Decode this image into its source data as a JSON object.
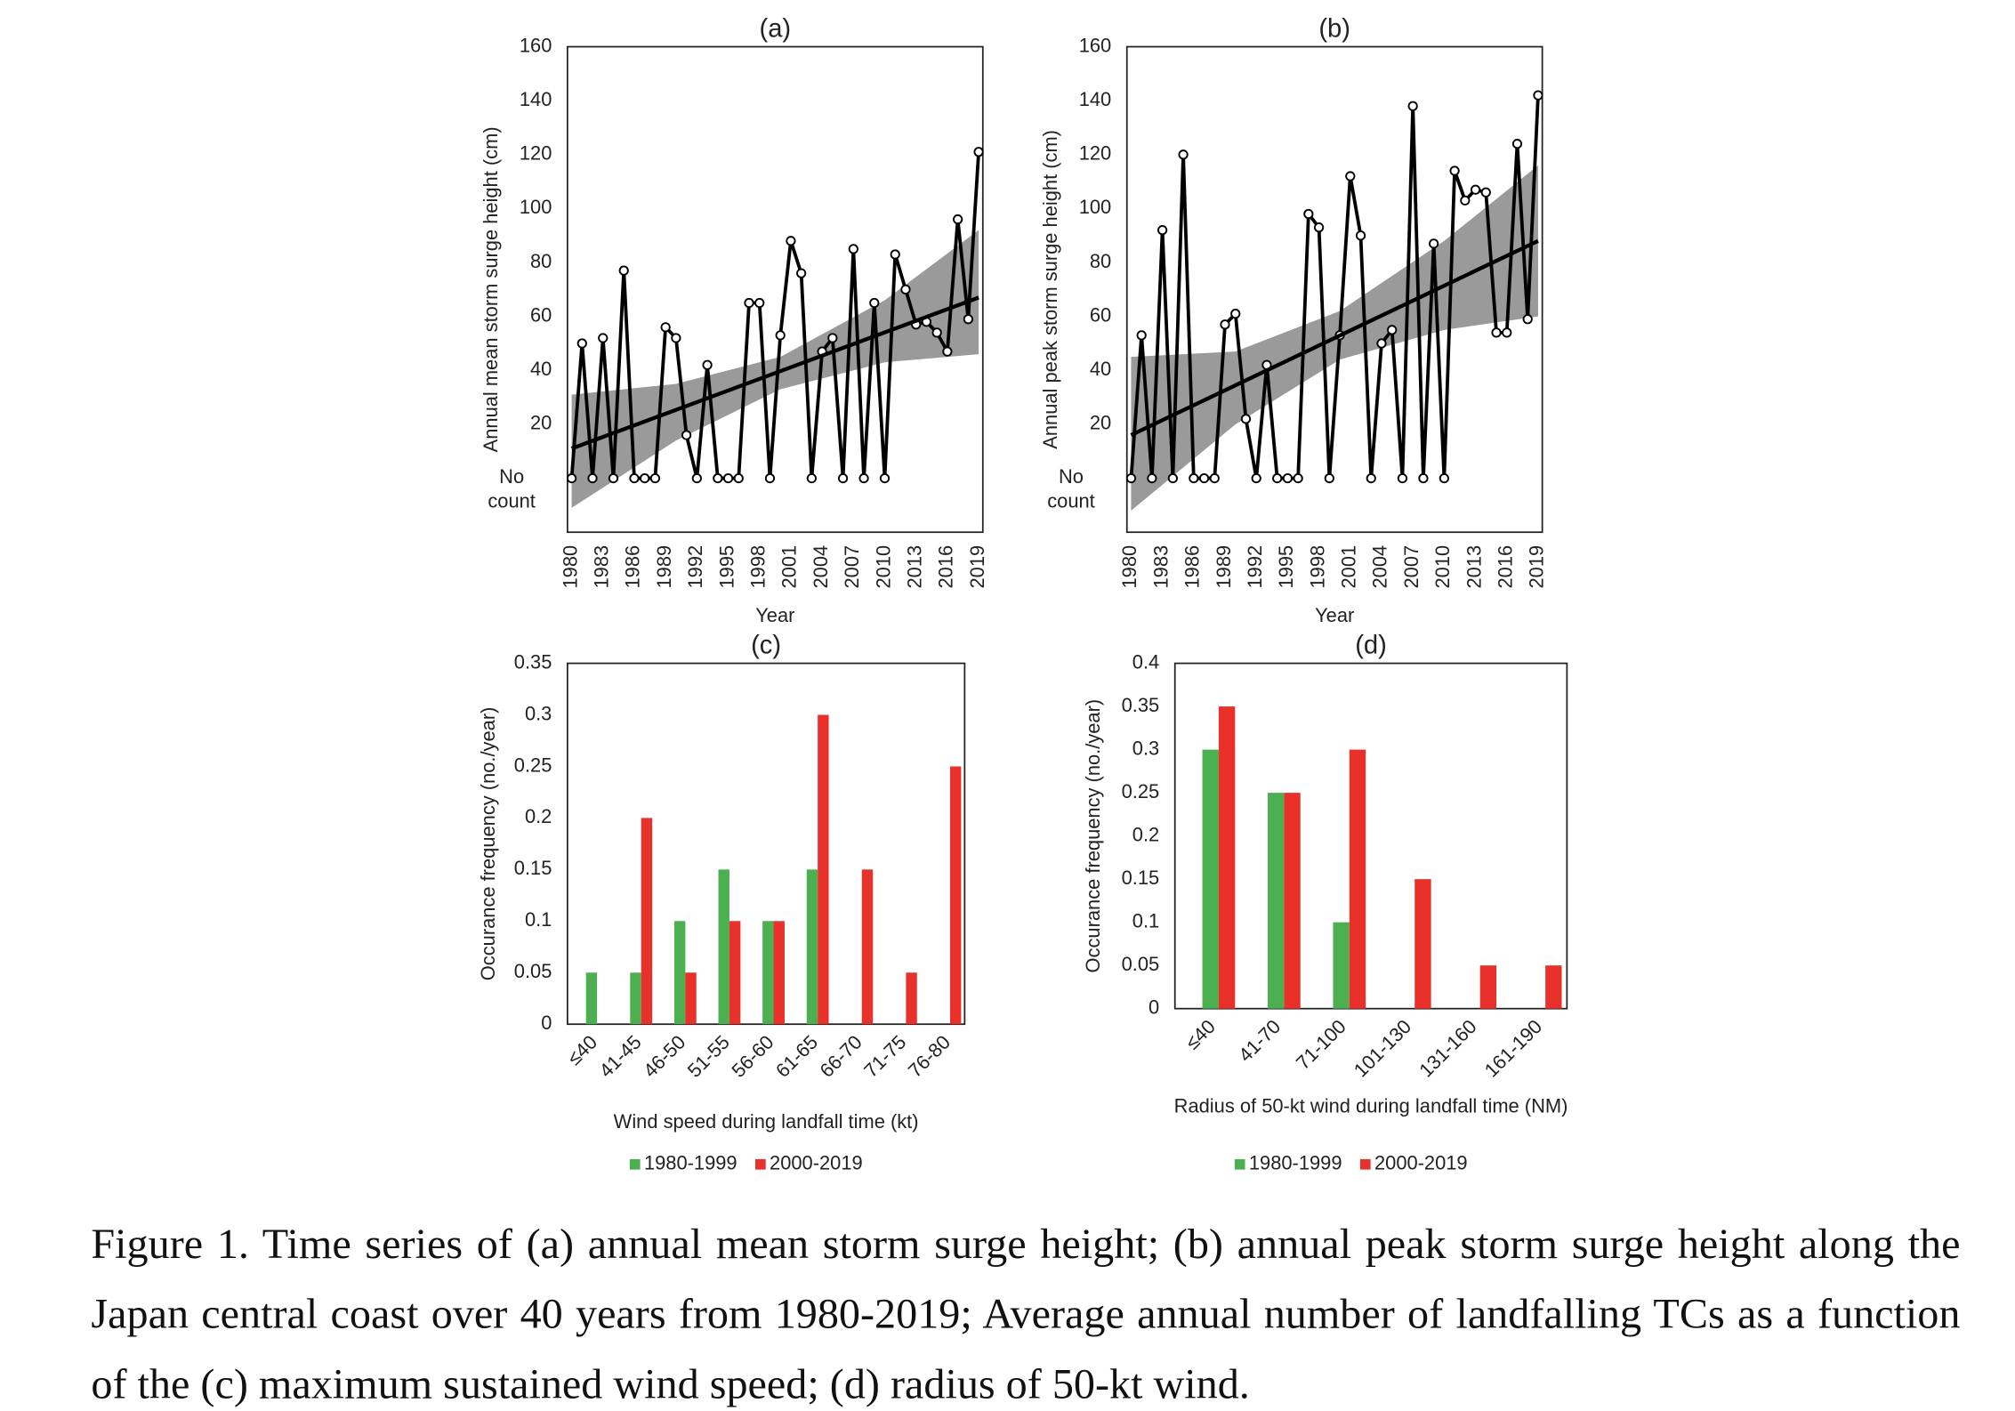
{
  "chart_data": [
    {
      "type": "line",
      "title": "(a)",
      "xlabel": "Year",
      "ylabel": "Annual mean storm surge height (cm)",
      "x": [
        1980,
        1981,
        1982,
        1983,
        1984,
        1985,
        1986,
        1987,
        1988,
        1989,
        1990,
        1991,
        1992,
        1993,
        1994,
        1995,
        1996,
        1997,
        1998,
        1999,
        2000,
        2001,
        2002,
        2003,
        2004,
        2005,
        2006,
        2007,
        2008,
        2009,
        2010,
        2011,
        2012,
        2013,
        2014,
        2015,
        2016,
        2017,
        2018,
        2019
      ],
      "series": [
        {
          "color": "#000000",
          "values": [
            0,
            50,
            0,
            52,
            0,
            77,
            0,
            0,
            0,
            56,
            52,
            16,
            0,
            42,
            0,
            0,
            0,
            65,
            65,
            0,
            53,
            88,
            76,
            0,
            47,
            52,
            0,
            85,
            0,
            65,
            0,
            83,
            70,
            57,
            58,
            54,
            47,
            96,
            59,
            121
          ]
        }
      ],
      "trend": {
        "x": [
          1980,
          2019
        ],
        "values": [
          11,
          67
        ]
      },
      "band": {
        "color": "#9a9a9a",
        "x": [
          1980,
          1990,
          2000,
          2010,
          2019
        ],
        "lower": [
          -11,
          14,
          33,
          43,
          46
        ],
        "upper": [
          31,
          35,
          45,
          66,
          92
        ]
      },
      "xlim": [
        1979.6,
        2019.4
      ],
      "xticks": [
        1980,
        1983,
        1986,
        1989,
        1992,
        1995,
        1998,
        2001,
        2004,
        2007,
        2010,
        2013,
        2016,
        2019
      ],
      "ylim": [
        -20,
        160
      ],
      "yticks": [
        {
          "value": 0,
          "label": "No count"
        },
        20,
        40,
        60,
        80,
        100,
        120,
        140,
        160
      ]
    },
    {
      "type": "line",
      "title": "(b)",
      "xlabel": "Year",
      "ylabel": "Annual peak storm surge height (cm)",
      "x": [
        1980,
        1981,
        1982,
        1983,
        1984,
        1985,
        1986,
        1987,
        1988,
        1989,
        1990,
        1991,
        1992,
        1993,
        1994,
        1995,
        1996,
        1997,
        1998,
        1999,
        2000,
        2001,
        2002,
        2003,
        2004,
        2005,
        2006,
        2007,
        2008,
        2009,
        2010,
        2011,
        2012,
        2013,
        2014,
        2015,
        2016,
        2017,
        2018,
        2019
      ],
      "series": [
        {
          "color": "#000000",
          "values": [
            0,
            53,
            0,
            92,
            0,
            120,
            0,
            0,
            0,
            57,
            61,
            22,
            0,
            42,
            0,
            0,
            0,
            98,
            93,
            0,
            53,
            112,
            90,
            0,
            50,
            55,
            0,
            138,
            0,
            87,
            0,
            114,
            103,
            107,
            106,
            54,
            54,
            124,
            59,
            142
          ]
        }
      ],
      "trend": {
        "x": [
          1980,
          2019
        ],
        "values": [
          16,
          88
        ]
      },
      "band": {
        "color": "#9a9a9a",
        "x": [
          1980,
          1990,
          2000,
          2010,
          2019
        ],
        "lower": [
          -12,
          20,
          44,
          55,
          60
        ],
        "upper": [
          45,
          47,
          62,
          88,
          116
        ]
      },
      "xlim": [
        1979.6,
        2019.4
      ],
      "xticks": [
        1980,
        1983,
        1986,
        1989,
        1992,
        1995,
        1998,
        2001,
        2004,
        2007,
        2010,
        2013,
        2016,
        2019
      ],
      "ylim": [
        -20,
        160
      ],
      "yticks": [
        {
          "value": 0,
          "label": "No count"
        },
        20,
        40,
        60,
        80,
        100,
        120,
        140,
        160
      ]
    },
    {
      "type": "bar",
      "title": "(c)",
      "xlabel": "Wind speed during landfall time (kt)",
      "ylabel": "Occurance frequency  (no./year)",
      "categories": [
        "≤40",
        "41-45",
        "46-50",
        "51-55",
        "56-60",
        "61-65",
        "66-70",
        "71-75",
        "76-80"
      ],
      "series": [
        {
          "name": "1980-1999",
          "color": "#4caf50",
          "values": [
            0.05,
            0.05,
            0.1,
            0.15,
            0.1,
            0.15,
            0,
            0,
            0
          ]
        },
        {
          "name": "2000-2019",
          "color": "#e8312a",
          "values": [
            0,
            0.2,
            0.05,
            0.1,
            0.1,
            0.3,
            0.15,
            0.05,
            0.25
          ]
        }
      ],
      "ylim": [
        0,
        0.35
      ],
      "yticks": [
        0,
        0.05,
        0.1,
        0.15,
        0.2,
        0.25,
        0.3,
        0.35
      ],
      "legend": "bottom"
    },
    {
      "type": "bar",
      "title": "(d)",
      "xlabel": "Radius of 50-kt wind during landfall time (NM)",
      "ylabel": "Occurance frequency  (no./year)",
      "categories": [
        "≤40",
        "41-70",
        "71-100",
        "101-130",
        "131-160",
        "161-190"
      ],
      "series": [
        {
          "name": "1980-1999",
          "color": "#4caf50",
          "values": [
            0.3,
            0.25,
            0.1,
            0,
            0,
            0
          ]
        },
        {
          "name": "2000-2019",
          "color": "#e8312a",
          "values": [
            0.35,
            0.25,
            0.3,
            0.15,
            0.05,
            0.05
          ]
        }
      ],
      "ylim": [
        0,
        0.4
      ],
      "yticks": [
        0,
        0.05,
        0.1,
        0.15,
        0.2,
        0.25,
        0.3,
        0.35,
        0.4
      ],
      "legend": "bottom"
    }
  ],
  "caption": "Figure 1. Time series of (a) annual mean storm surge height; (b) annual peak storm surge height along the Japan central coast over 40 years from 1980-2019; Average annual number of landfalling TCs as a function of the (c) maximum sustained wind speed; (d) radius of 50-kt wind."
}
